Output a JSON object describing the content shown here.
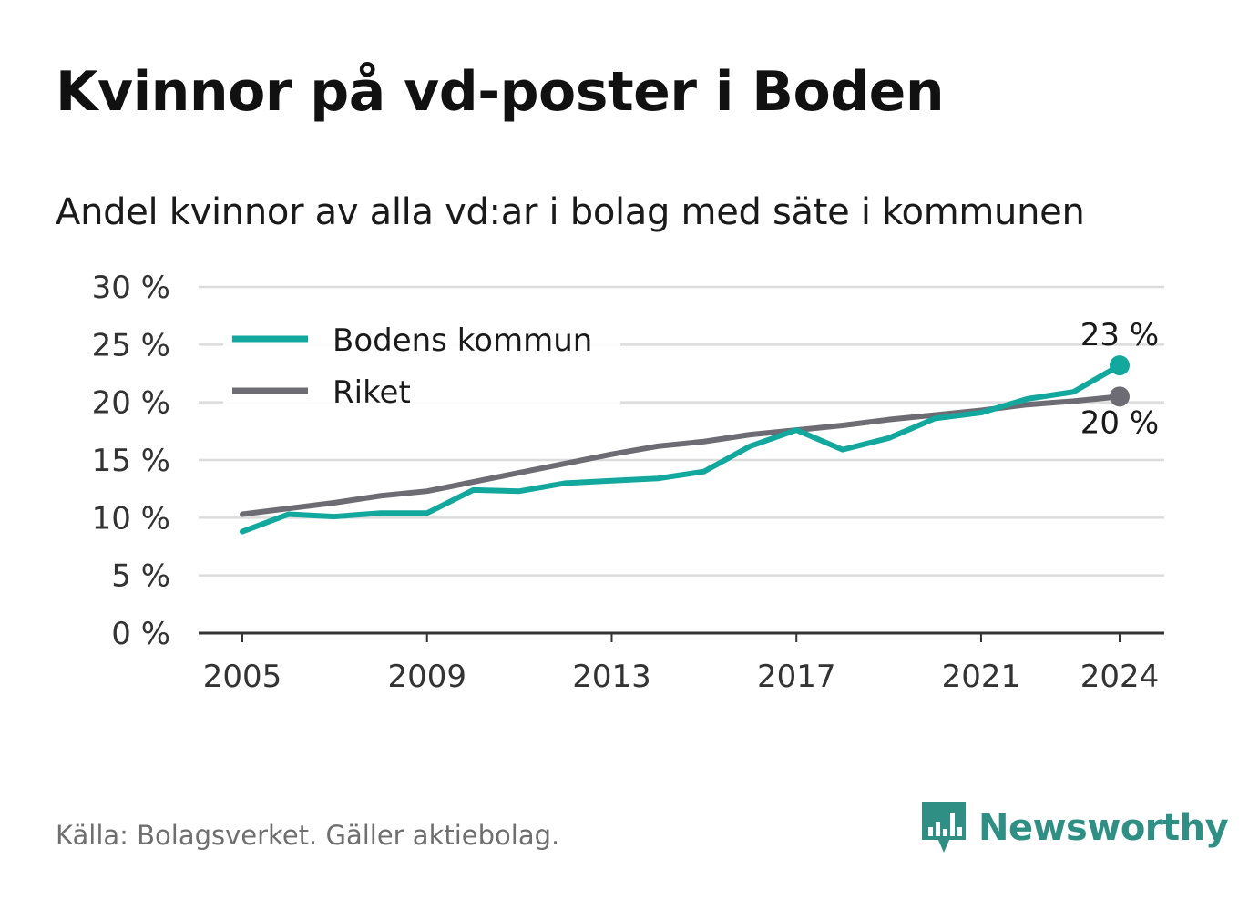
{
  "title": "Kvinnor på vd-poster i Boden",
  "subtitle": "Andel kvinnor av alla vd:ar i bolag med säte i kommunen",
  "source": "Källa: Bolagsverket. Gäller aktiebolag.",
  "brand": "Newsworthy",
  "brand_icon": "newsworthy-logo-icon",
  "colors": {
    "boden": "#13a89e",
    "riket": "#6d6c74",
    "grid": "#dcdcdc",
    "axis": "#333333",
    "brand": "#2f8f85"
  },
  "chart_data": {
    "type": "line",
    "x": [
      2005,
      2006,
      2007,
      2008,
      2009,
      2010,
      2011,
      2012,
      2013,
      2014,
      2015,
      2016,
      2017,
      2018,
      2019,
      2020,
      2021,
      2022,
      2023,
      2024
    ],
    "series": [
      {
        "name": "Bodens kommun",
        "values": [
          8.8,
          10.3,
          10.1,
          10.4,
          10.4,
          12.4,
          12.3,
          13.0,
          13.2,
          13.4,
          14.0,
          16.2,
          17.6,
          15.9,
          16.9,
          18.6,
          19.1,
          20.3,
          20.9,
          23.2
        ]
      },
      {
        "name": "Riket",
        "values": [
          10.3,
          10.8,
          11.3,
          11.9,
          12.3,
          13.1,
          13.9,
          14.7,
          15.5,
          16.2,
          16.6,
          17.2,
          17.6,
          18.0,
          18.5,
          18.9,
          19.3,
          19.8,
          20.1,
          20.5
        ]
      }
    ],
    "x_ticks": [
      "2005",
      "2009",
      "2013",
      "2017",
      "2021",
      "2024"
    ],
    "y_ticks": [
      "0 %",
      "5 %",
      "10 %",
      "15 %",
      "20 %",
      "25 %",
      "30 %"
    ],
    "ylim": [
      0,
      30
    ],
    "end_labels": [
      "23 %",
      "20 %"
    ],
    "legend": {
      "position": "top-left",
      "entries": [
        "Bodens kommun",
        "Riket"
      ]
    },
    "grid": true
  }
}
